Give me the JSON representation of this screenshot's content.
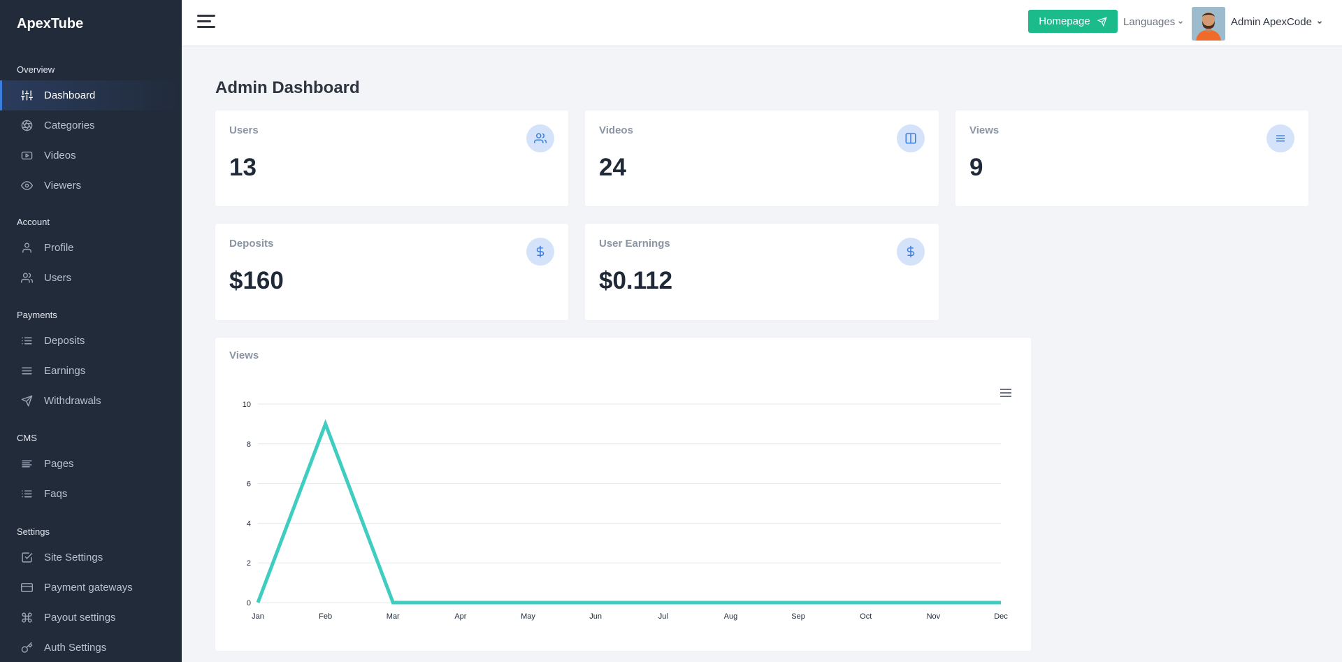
{
  "brand": "ApexTube",
  "sidebar": {
    "sections": [
      {
        "title": "Overview",
        "items": [
          {
            "label": "Dashboard",
            "icon": "sliders-icon",
            "active": true
          },
          {
            "label": "Categories",
            "icon": "aperture-icon"
          },
          {
            "label": "Videos",
            "icon": "youtube-icon"
          },
          {
            "label": "Viewers",
            "icon": "eye-icon"
          }
        ]
      },
      {
        "title": "Account",
        "items": [
          {
            "label": "Profile",
            "icon": "user-icon"
          },
          {
            "label": "Users",
            "icon": "users-icon"
          }
        ]
      },
      {
        "title": "Payments",
        "items": [
          {
            "label": "Deposits",
            "icon": "list-icon"
          },
          {
            "label": "Earnings",
            "icon": "menu-icon"
          },
          {
            "label": "Withdrawals",
            "icon": "send-icon"
          }
        ]
      },
      {
        "title": "CMS",
        "items": [
          {
            "label": "Pages",
            "icon": "align-left-icon"
          },
          {
            "label": "Faqs",
            "icon": "list-icon"
          }
        ]
      },
      {
        "title": "Settings",
        "items": [
          {
            "label": "Site Settings",
            "icon": "check-square-icon"
          },
          {
            "label": "Payment gateways",
            "icon": "credit-card-icon"
          },
          {
            "label": "Payout settings",
            "icon": "command-icon"
          },
          {
            "label": "Auth Settings",
            "icon": "key-icon"
          }
        ]
      }
    ]
  },
  "header": {
    "homepage_label": "Homepage",
    "languages_label": "Languages",
    "user_name": "Admin ApexCode"
  },
  "page_title": "Admin Dashboard",
  "stats": {
    "users": {
      "label": "Users",
      "value": "13",
      "icon": "users-icon"
    },
    "videos": {
      "label": "Videos",
      "value": "24",
      "icon": "columns-icon"
    },
    "views": {
      "label": "Views",
      "value": "9",
      "icon": "menu-icon"
    },
    "deposits": {
      "label": "Deposits",
      "value": "$160",
      "icon": "dollar-icon"
    },
    "earnings": {
      "label": "User Earnings",
      "value": "$0.112",
      "icon": "dollar-icon"
    }
  },
  "colors": {
    "accent": "#1cbb8c",
    "line": "#3ecdc0",
    "sidebar": "#212b3a",
    "icon_bg": "#d5e3fa",
    "icon_fg": "#3b7ddd"
  },
  "chart_data": {
    "type": "line",
    "title": "Views",
    "categories": [
      "Jan",
      "Feb",
      "Mar",
      "Apr",
      "May",
      "Jun",
      "Jul",
      "Aug",
      "Sep",
      "Oct",
      "Nov",
      "Dec"
    ],
    "series": [
      {
        "values": [
          0,
          9,
          0,
          0,
          0,
          0,
          0,
          0,
          0,
          0,
          0,
          0
        ]
      }
    ],
    "ylim": [
      0,
      10
    ],
    "yticks": [
      "0",
      "2",
      "4",
      "6",
      "8",
      "10"
    ],
    "grid": true,
    "legend": "none"
  }
}
